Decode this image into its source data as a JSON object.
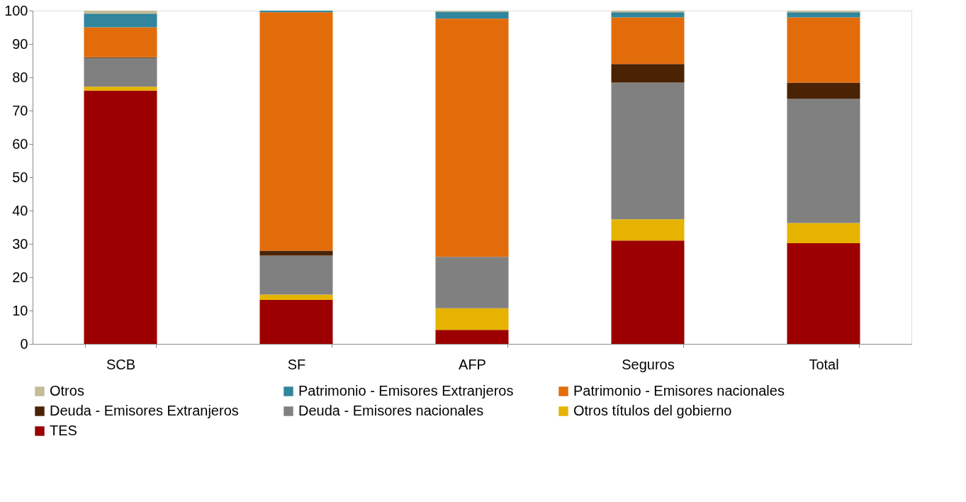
{
  "chart_data": {
    "type": "bar",
    "stacked": true,
    "categories": [
      "SCB",
      "SF",
      "AFP",
      "Seguros",
      "Total"
    ],
    "series": [
      {
        "name": "TES",
        "color": "#9c0000",
        "values": [
          76.0,
          13.2,
          4.2,
          31.0,
          30.2
        ]
      },
      {
        "name": "Otros títulos del gobierno",
        "color": "#e6b400",
        "values": [
          1.2,
          1.6,
          6.5,
          6.4,
          6.1
        ]
      },
      {
        "name": "Deuda - Emisores nacionales",
        "color": "#808080",
        "values": [
          8.6,
          11.7,
          15.4,
          41.0,
          37.2
        ]
      },
      {
        "name": "Deuda - Emisores Extranjeros",
        "color": "#4a2204",
        "values": [
          0.2,
          1.5,
          0.0,
          5.6,
          4.9
        ]
      },
      {
        "name": "Patrimonio - Emisores nacionales",
        "color": "#e36c0a",
        "values": [
          9.0,
          71.5,
          71.5,
          14.0,
          19.6
        ]
      },
      {
        "name": "Patrimonio - Emisores Extranjeros",
        "color": "#31859c",
        "values": [
          4.1,
          0.5,
          2.1,
          1.5,
          1.5
        ]
      },
      {
        "name": "Otros",
        "color": "#c4bd97",
        "values": [
          0.9,
          0.0,
          0.3,
          0.5,
          0.5
        ]
      }
    ],
    "ylim": [
      0,
      100
    ],
    "yticks": [
      0,
      10,
      20,
      30,
      40,
      50,
      60,
      70,
      80,
      90,
      100
    ],
    "grid": false,
    "legend": "bottom"
  }
}
